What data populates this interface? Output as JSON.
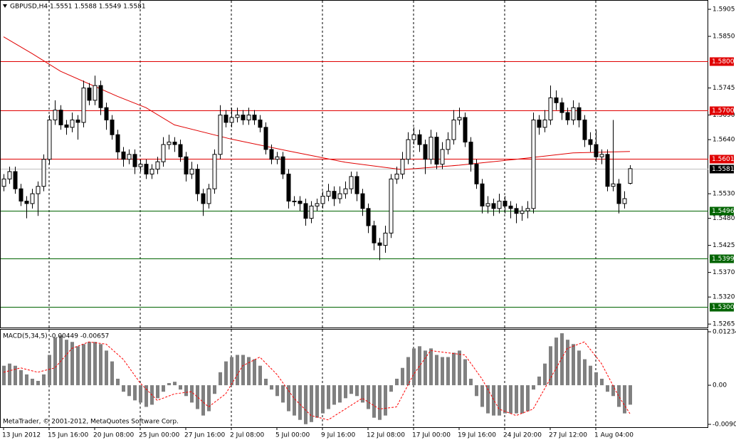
{
  "chart_data": {
    "type": "candlestick",
    "title": "GBPUSD,H4  1.5551 1.5588 1.5549 1.5581",
    "watermark": "MetaTrader, © 2001-2012, MetaQuotes Software Corp.",
    "categories": [
      "13 Jun 2012",
      null,
      null,
      null,
      null,
      null,
      null,
      null,
      "15 Jun 16:00",
      null,
      null,
      null,
      null,
      null,
      null,
      null,
      "20 Jun 08:00",
      null,
      null,
      null,
      null,
      null,
      null,
      null,
      "25 Jun 00:00",
      null,
      null,
      null,
      null,
      null,
      null,
      null,
      "27 Jun 16:00",
      null,
      null,
      null,
      null,
      null,
      null,
      null,
      "2 Jul 08:00",
      null,
      null,
      null,
      null,
      null,
      null,
      null,
      "5 Jul 00:00",
      null,
      null,
      null,
      null,
      null,
      null,
      null,
      "9 Jul 16:00",
      null,
      null,
      null,
      null,
      null,
      null,
      null,
      "12 Jul 08:00",
      null,
      null,
      null,
      null,
      null,
      null,
      null,
      "17 Jul 00:00",
      null,
      null,
      null,
      null,
      null,
      null,
      null,
      "19 Jul 16:00",
      null,
      null,
      null,
      null,
      null,
      null,
      null,
      "24 Jul 20:00",
      null,
      null,
      null,
      null,
      null,
      null,
      null,
      "27 Jul 12:00",
      null,
      null,
      null,
      null,
      null,
      null,
      null,
      "1 Aug 04:00",
      null,
      null,
      null,
      null,
      null,
      null
    ],
    "open": [
      1.5545,
      1.556,
      1.5575,
      1.554,
      1.5515,
      1.551,
      1.553,
      1.5545,
      1.56,
      1.568,
      1.57,
      1.567,
      1.5665,
      1.568,
      1.5675,
      1.5745,
      1.572,
      1.575,
      1.5705,
      1.568,
      1.565,
      1.5615,
      1.56,
      1.561,
      1.5585,
      1.559,
      1.557,
      1.558,
      1.5595,
      1.563,
      1.5635,
      1.563,
      1.5605,
      1.557,
      1.558,
      1.553,
      1.551,
      1.554,
      1.561,
      1.569,
      1.5675,
      1.5685,
      1.569,
      1.568,
      1.569,
      1.568,
      1.5665,
      1.562,
      1.56,
      1.5605,
      1.557,
      1.5515,
      1.5515,
      1.551,
      1.548,
      1.5505,
      1.551,
      1.5525,
      1.5535,
      1.552,
      1.553,
      1.554,
      1.5565,
      1.553,
      1.55,
      1.5465,
      1.543,
      1.5425,
      1.545,
      1.556,
      1.557,
      1.56,
      1.564,
      1.565,
      1.563,
      1.56,
      1.5645,
      1.559,
      1.562,
      1.564,
      1.568,
      1.5685,
      1.5635,
      1.559,
      1.555,
      1.5505,
      1.551,
      1.55,
      1.5515,
      1.5505,
      1.55,
      1.549,
      1.5495,
      1.55,
      1.568,
      1.5665,
      1.568,
      1.5725,
      1.5715,
      1.5695,
      1.568,
      1.5705,
      1.568,
      1.564,
      1.563,
      1.5605,
      1.561,
      1.5545,
      1.555,
      1.551,
      1.5551
    ],
    "high": [
      1.557,
      1.5585,
      1.5585,
      1.555,
      1.5525,
      1.554,
      1.5555,
      1.561,
      1.569,
      1.572,
      1.571,
      1.568,
      1.5695,
      1.569,
      1.576,
      1.5755,
      1.577,
      1.576,
      1.5715,
      1.569,
      1.566,
      1.5625,
      1.562,
      1.562,
      1.56,
      1.56,
      1.559,
      1.5605,
      1.5645,
      1.565,
      1.5645,
      1.564,
      1.5615,
      1.5595,
      1.559,
      1.554,
      1.555,
      1.562,
      1.571,
      1.57,
      1.5705,
      1.5705,
      1.57,
      1.5705,
      1.57,
      1.569,
      1.5675,
      1.563,
      1.5615,
      1.5615,
      1.558,
      1.5525,
      1.5525,
      1.552,
      1.5515,
      1.552,
      1.5535,
      1.555,
      1.5545,
      1.5545,
      1.5555,
      1.5575,
      1.5575,
      1.554,
      1.551,
      1.5475,
      1.544,
      1.5465,
      1.557,
      1.5585,
      1.5615,
      1.5655,
      1.5665,
      1.566,
      1.564,
      1.566,
      1.5655,
      1.5635,
      1.5655,
      1.57,
      1.5705,
      1.5695,
      1.5645,
      1.56,
      1.556,
      1.5525,
      1.552,
      1.553,
      1.5525,
      1.5515,
      1.551,
      1.5505,
      1.5515,
      1.5695,
      1.569,
      1.57,
      1.575,
      1.574,
      1.5725,
      1.5705,
      1.572,
      1.5715,
      1.569,
      1.5655,
      1.566,
      1.562,
      1.562,
      1.568,
      1.556,
      1.5535,
      1.5588
    ],
    "low": [
      1.5535,
      1.555,
      1.553,
      1.5505,
      1.548,
      1.55,
      1.5485,
      1.5535,
      1.559,
      1.567,
      1.566,
      1.565,
      1.5655,
      1.564,
      1.5665,
      1.571,
      1.571,
      1.569,
      1.566,
      1.564,
      1.56,
      1.5585,
      1.559,
      1.557,
      1.5575,
      1.556,
      1.556,
      1.557,
      1.5585,
      1.562,
      1.5615,
      1.5595,
      1.5555,
      1.556,
      1.5515,
      1.5485,
      1.55,
      1.553,
      1.56,
      1.5665,
      1.5665,
      1.5675,
      1.567,
      1.567,
      1.567,
      1.5655,
      1.561,
      1.559,
      1.559,
      1.556,
      1.55,
      1.5505,
      1.5495,
      1.5465,
      1.547,
      1.5495,
      1.55,
      1.5515,
      1.5505,
      1.551,
      1.552,
      1.553,
      1.5515,
      1.5485,
      1.545,
      1.5415,
      1.5395,
      1.541,
      1.544,
      1.555,
      1.556,
      1.559,
      1.563,
      1.5615,
      1.557,
      1.559,
      1.558,
      1.558,
      1.561,
      1.563,
      1.567,
      1.5625,
      1.5575,
      1.554,
      1.549,
      1.549,
      1.5485,
      1.549,
      1.549,
      1.548,
      1.547,
      1.5475,
      1.548,
      1.549,
      1.565,
      1.5655,
      1.567,
      1.57,
      1.568,
      1.567,
      1.567,
      1.5665,
      1.5625,
      1.5615,
      1.5595,
      1.559,
      1.5535,
      1.5535,
      1.549,
      1.55,
      1.5549
    ],
    "close": [
      1.556,
      1.5575,
      1.554,
      1.5515,
      1.551,
      1.553,
      1.5545,
      1.56,
      1.568,
      1.57,
      1.567,
      1.5665,
      1.568,
      1.5675,
      1.5745,
      1.572,
      1.575,
      1.5705,
      1.568,
      1.565,
      1.5615,
      1.56,
      1.561,
      1.5585,
      1.559,
      1.557,
      1.558,
      1.5595,
      1.563,
      1.5635,
      1.563,
      1.5605,
      1.557,
      1.558,
      1.553,
      1.551,
      1.554,
      1.561,
      1.569,
      1.5675,
      1.5685,
      1.569,
      1.568,
      1.569,
      1.568,
      1.5665,
      1.562,
      1.56,
      1.5605,
      1.557,
      1.5515,
      1.5515,
      1.551,
      1.548,
      1.5505,
      1.551,
      1.5525,
      1.5535,
      1.552,
      1.553,
      1.554,
      1.5565,
      1.553,
      1.55,
      1.5465,
      1.543,
      1.5425,
      1.545,
      1.556,
      1.557,
      1.56,
      1.564,
      1.565,
      1.563,
      1.56,
      1.5645,
      1.559,
      1.562,
      1.564,
      1.568,
      1.5685,
      1.5635,
      1.559,
      1.555,
      1.5505,
      1.551,
      1.55,
      1.5515,
      1.5505,
      1.55,
      1.549,
      1.5495,
      1.55,
      1.568,
      1.5665,
      1.568,
      1.5725,
      1.5715,
      1.5695,
      1.568,
      1.5705,
      1.568,
      1.564,
      1.563,
      1.5605,
      1.561,
      1.5545,
      1.555,
      1.551,
      1.552,
      1.5581
    ],
    "up_color": "#ffffff",
    "down_color": "#000000",
    "ylim": [
      1.5258,
      1.5921
    ],
    "yticks": [
      1.5905,
      {
        "value": 1.585,
        "label": "1.5850"
      },
      1.5745,
      {
        "value": 1.569,
        "label": "1.5690"
      },
      {
        "value": 1.564,
        "label": "1.5640"
      },
      {
        "value": 1.553,
        "label": "1.5530"
      },
      {
        "value": 1.548,
        "label": "1.5480"
      },
      1.5425,
      {
        "value": 1.537,
        "label": "1.5370"
      },
      {
        "value": 1.532,
        "label": "1.5320"
      },
      1.5265
    ],
    "grid": true,
    "moving_average": {
      "color": "#e00000",
      "x": [
        0,
        5,
        10,
        20,
        25,
        30,
        40,
        50,
        60,
        70,
        80,
        90,
        100,
        110
      ],
      "values": [
        1.5849,
        1.5815,
        1.5779,
        1.5728,
        1.5705,
        1.567,
        1.5641,
        1.5617,
        1.5594,
        1.5579,
        1.5588,
        1.56,
        1.5613,
        1.5616
      ]
    },
    "levels": [
      {
        "value": 1.58,
        "label": "1.5800",
        "color": "#e00000"
      },
      {
        "value": 1.57,
        "label": "1.5700",
        "color": "#e00000"
      },
      {
        "value": 1.5601,
        "label": "1.5601",
        "color": "#e00000"
      },
      {
        "value": 1.5496,
        "label": "1.5496",
        "color": "#006400"
      },
      {
        "value": 1.5399,
        "label": "1.5399",
        "color": "#006400"
      },
      {
        "value": 1.53,
        "label": "1.5300",
        "color": "#006400"
      }
    ],
    "current_price": {
      "value": 1.5581,
      "color": "#c0c0c0"
    },
    "macd": {
      "type": "bar",
      "title": "MACD(5,34,5) -0.00449 -0.00657",
      "color": "#808080",
      "values": [
        0.0045,
        0.005,
        0.0045,
        0.0035,
        0.0025,
        0.0015,
        0.001,
        0.0025,
        0.007,
        0.011,
        0.0115,
        0.0105,
        0.01,
        0.009,
        0.0095,
        0.01,
        0.01,
        0.0095,
        0.008,
        0.0055,
        0.0015,
        -0.0015,
        -0.0025,
        -0.0035,
        -0.004,
        -0.005,
        -0.0045,
        -0.003,
        -0.0015,
        0.0005,
        0.0008,
        -0.001,
        -0.0025,
        -0.004,
        -0.0055,
        -0.007,
        -0.006,
        -0.002,
        0.003,
        0.0055,
        0.0065,
        0.007,
        0.007,
        0.0065,
        0.006,
        0.0045,
        0.0015,
        -0.001,
        -0.0025,
        -0.004,
        -0.006,
        -0.007,
        -0.008,
        -0.009,
        -0.0085,
        -0.0075,
        -0.0065,
        -0.0055,
        -0.0045,
        -0.004,
        -0.003,
        -0.002,
        -0.0025,
        -0.004,
        -0.0055,
        -0.0075,
        -0.008,
        -0.007,
        -0.0015,
        0.0015,
        0.004,
        0.0065,
        0.0085,
        0.009,
        0.008,
        0.0085,
        0.007,
        0.0065,
        0.0065,
        0.0075,
        0.008,
        0.006,
        0.0015,
        -0.0025,
        -0.005,
        -0.0065,
        -0.007,
        -0.007,
        -0.0065,
        -0.0065,
        -0.0065,
        -0.0065,
        -0.006,
        -0.001,
        0.002,
        0.005,
        0.009,
        0.011,
        0.012,
        0.0105,
        0.0095,
        0.008,
        0.006,
        0.0045,
        0.003,
        0.0015,
        -0.0015,
        -0.0025,
        -0.005,
        -0.0065,
        -0.00449
      ],
      "signal": {
        "color": "#ff0000",
        "x": [
          0,
          3,
          6,
          9,
          12,
          15,
          18,
          21,
          24,
          27,
          30,
          33,
          36,
          39,
          42,
          45,
          48,
          51,
          54,
          57,
          60,
          63,
          66,
          69,
          72,
          75,
          78,
          81,
          84,
          87,
          90,
          93,
          96,
          99,
          102,
          105,
          108,
          110
        ],
        "values": [
          0.003,
          0.004,
          0.003,
          0.004,
          0.0085,
          0.01,
          0.0095,
          0.006,
          0.0005,
          -0.0035,
          -0.002,
          -0.0015,
          -0.005,
          -0.002,
          0.0045,
          0.0065,
          0.0025,
          -0.003,
          -0.007,
          -0.008,
          -0.0055,
          -0.003,
          -0.0055,
          -0.005,
          0.0025,
          0.008,
          0.0075,
          0.007,
          0.0015,
          -0.0055,
          -0.007,
          -0.0055,
          0.0015,
          0.0085,
          0.01,
          0.005,
          -0.0025,
          -0.00657
        ]
      },
      "ylim": [
        -0.00903,
        0.01234
      ],
      "yticks": [
        -0.00903,
        {
          "value": 0,
          "label": "0.00"
        },
        0.01234
      ]
    }
  }
}
